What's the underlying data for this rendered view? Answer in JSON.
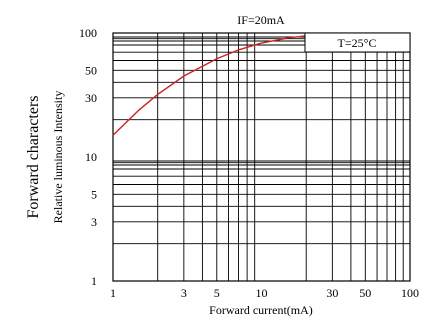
{
  "chart_data": {
    "type": "line",
    "title": "IF=20mA",
    "ylabel": "Forward characters",
    "ylabel_sub": "Relative luminous Intensity",
    "xlabel": "Forward current(mA)",
    "annotation": "T=25°C",
    "x_scale": "log",
    "y_scale": "log",
    "xlim": [
      1,
      100
    ],
    "ylim": [
      1,
      100
    ],
    "grid": true,
    "x_ticks": [
      1,
      3,
      5,
      10,
      30,
      50,
      100
    ],
    "x_tick_labels": [
      "1",
      "3",
      "5",
      "10",
      "30",
      "50",
      "100"
    ],
    "y_ticks": [
      1,
      3,
      5,
      10,
      30,
      50,
      100
    ],
    "y_tick_labels": [
      "1",
      "3",
      "5",
      "10",
      "30",
      "50",
      "100"
    ],
    "curve_color": "#cc2222",
    "series": [
      {
        "x": [
          1,
          1.5,
          2,
          3,
          5,
          7,
          10,
          15,
          20
        ],
        "y": [
          15,
          24,
          32,
          45,
          62,
          73,
          83,
          91,
          95
        ]
      }
    ]
  }
}
